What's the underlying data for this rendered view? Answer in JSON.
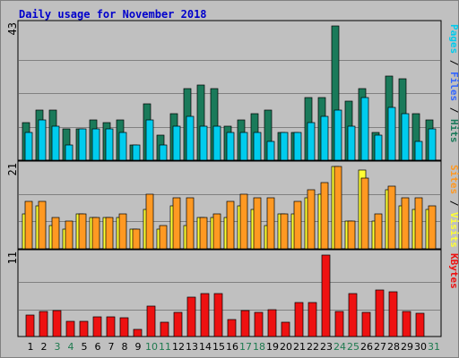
{
  "chart_data": {
    "type": "bar",
    "title": "Daily usage for November 2018",
    "days": [
      "1",
      "2",
      "3",
      "4",
      "5",
      "6",
      "7",
      "8",
      "9",
      "10",
      "11",
      "12",
      "13",
      "14",
      "15",
      "16",
      "17",
      "18",
      "19",
      "20",
      "21",
      "22",
      "23",
      "24",
      "25",
      "26",
      "27",
      "28",
      "29",
      "30",
      "31"
    ],
    "weekend_days": [
      "3",
      "4",
      "10",
      "11",
      "17",
      "18",
      "24",
      "25",
      "31"
    ],
    "colors": {
      "weekday_label": "#000000",
      "weekend_label": "#1e7a4f",
      "pages": "#1a7a5a",
      "files": "#00ccee",
      "hits": "#1a7a5a",
      "visits": "#ffff33",
      "sites": "#ff9922",
      "kbytes": "#ee1111",
      "separator": "#000000",
      "slash": "#000000"
    },
    "panels": [
      {
        "id": "hits",
        "ymax": 43,
        "legend": [
          {
            "text": "Pages",
            "color": "#00ccee"
          },
          {
            "text": " / ",
            "color": "#000000"
          },
          {
            "text": "Files",
            "color": "#3366ff"
          },
          {
            "text": " / ",
            "color": "#000000"
          },
          {
            "text": "Hits",
            "color": "#1a7a5a"
          }
        ],
        "series": [
          {
            "name": "Hits",
            "color": "#1a7a5a",
            "values": [
              12,
              16,
              16,
              10,
              10,
              13,
              12,
              13,
              5,
              18,
              8,
              15,
              23,
              24,
              23,
              11,
              13,
              15,
              16,
              9,
              9,
              20,
              20,
              43,
              19,
              23,
              9,
              27,
              26,
              15,
              13
            ]
          },
          {
            "name": "Files",
            "color": "#00ccee",
            "values": [
              9,
              13,
              11,
              5,
              10,
              10,
              10,
              9,
              5,
              13,
              5,
              11,
              14,
              11,
              11,
              9,
              9,
              9,
              6,
              9,
              9,
              12,
              14,
              16,
              11,
              20,
              8,
              17,
              15,
              6,
              10
            ]
          }
        ]
      },
      {
        "id": "visits",
        "ymax": 21,
        "legend": [
          {
            "text": "Sites",
            "color": "#ff9922"
          },
          {
            "text": " / ",
            "color": "#000000"
          },
          {
            "text": "Visits",
            "color": "#ffff33"
          }
        ],
        "series": [
          {
            "name": "Visits",
            "color": "#ffff33",
            "values": [
              9,
              11,
              6,
              5,
              9,
              8,
              8,
              8,
              5,
              10,
              5,
              11,
              6,
              8,
              8,
              8,
              11,
              10,
              6,
              9,
              9,
              13,
              14,
              21,
              7,
              20,
              7,
              15,
              11,
              10,
              10
            ]
          },
          {
            "name": "Sites",
            "color": "#ff9922",
            "values": [
              12,
              12,
              8,
              7,
              9,
              8,
              8,
              9,
              5,
              14,
              6,
              13,
              13,
              8,
              9,
              12,
              14,
              13,
              13,
              9,
              12,
              15,
              17,
              21,
              7,
              18,
              9,
              16,
              13,
              13,
              11
            ]
          }
        ]
      },
      {
        "id": "kbytes",
        "ymax": 11,
        "legend": [
          {
            "text": "KBytes",
            "color": "#ee1111"
          }
        ],
        "series": [
          {
            "name": "KBytes",
            "color": "#ee1111",
            "values": [
              2.9,
              3.4,
              3.5,
              2.1,
              2.1,
              2.7,
              2.7,
              2.5,
              1.0,
              4.1,
              1.9,
              3.3,
              5.3,
              5.8,
              5.8,
              2.3,
              3.5,
              3.3,
              3.6,
              1.9,
              4.6,
              4.6,
              11,
              3.4,
              5.8,
              3.3,
              6.3,
              6.1,
              3.4,
              3.1,
              null
            ]
          }
        ]
      }
    ]
  }
}
